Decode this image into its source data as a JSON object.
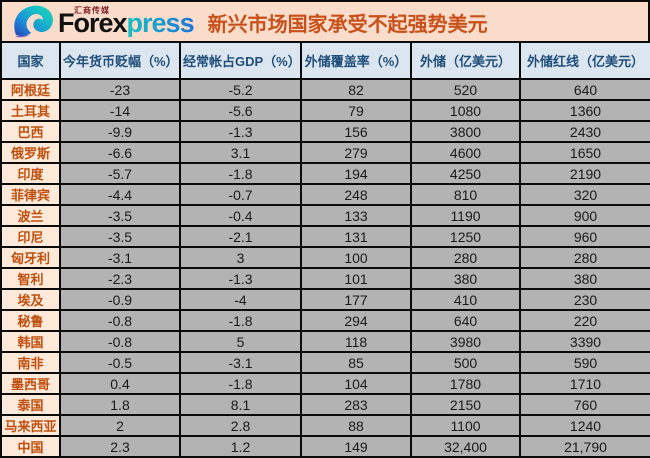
{
  "banner": {
    "logo": {
      "brand_black": "Forex",
      "brand_blue": "press",
      "tagline": "汇商传媒",
      "icon": "wave-swirl-icon"
    },
    "title": "新兴市场国家承受不起强势美元"
  },
  "chart_data": {
    "type": "table",
    "title": "新兴市场国家承受不起强势美元",
    "columns": [
      "国家",
      "今年货币贬幅（%）",
      "经常帐占GDP（%）",
      "外储覆盖率（%）",
      "外储（亿美元）",
      "外储红线（亿美元）"
    ],
    "rows": [
      [
        "阿根廷",
        "-23",
        "-5.2",
        "82",
        "520",
        "640"
      ],
      [
        "土耳其",
        "-14",
        "-5.6",
        "79",
        "1080",
        "1360"
      ],
      [
        "巴西",
        "-9.9",
        "-1.3",
        "156",
        "3800",
        "2430"
      ],
      [
        "俄罗斯",
        "-6.6",
        "3.1",
        "279",
        "4600",
        "1650"
      ],
      [
        "印度",
        "-5.7",
        "-1.8",
        "194",
        "4250",
        "2190"
      ],
      [
        "菲律宾",
        "-4.4",
        "-0.7",
        "248",
        "810",
        "320"
      ],
      [
        "波兰",
        "-3.5",
        "-0.4",
        "133",
        "1190",
        "900"
      ],
      [
        "印尼",
        "-3.5",
        "-2.1",
        "131",
        "1250",
        "960"
      ],
      [
        "匈牙利",
        "-3.1",
        "3",
        "100",
        "280",
        "280"
      ],
      [
        "智利",
        "-2.3",
        "-1.3",
        "101",
        "380",
        "380"
      ],
      [
        "埃及",
        "-0.9",
        "-4",
        "177",
        "410",
        "230"
      ],
      [
        "秘鲁",
        "-0.8",
        "-1.8",
        "294",
        "640",
        "220"
      ],
      [
        "韩国",
        "-0.8",
        "5",
        "118",
        "3980",
        "3390"
      ],
      [
        "南非",
        "-0.5",
        "-3.1",
        "85",
        "500",
        "590"
      ],
      [
        "墨西哥",
        "0.4",
        "-1.8",
        "104",
        "1780",
        "1710"
      ],
      [
        "泰国",
        "1.8",
        "8.1",
        "283",
        "2150",
        "760"
      ],
      [
        "马来西亚",
        "2",
        "2.8",
        "88",
        "1100",
        "1240"
      ],
      [
        "中国",
        "2.3",
        "1.2",
        "149",
        "32,400",
        "21,790"
      ]
    ]
  },
  "colors": {
    "banner_bg": "#fadcca",
    "title_text": "#c8511b",
    "header_bg": "#dce6f1",
    "header_text": "#1f4e79",
    "country_bg": "#fde9d9",
    "country_text": "#c0500f",
    "cell_bg": "#b3b3b3",
    "cell_text": "#1a1a1a",
    "border": "#0b0b0b",
    "brand_black": "#111111",
    "brand_gradient_start": "#19c0c6",
    "brand_gradient_end": "#1b74d8",
    "tagline_text": "#7d1f24"
  }
}
